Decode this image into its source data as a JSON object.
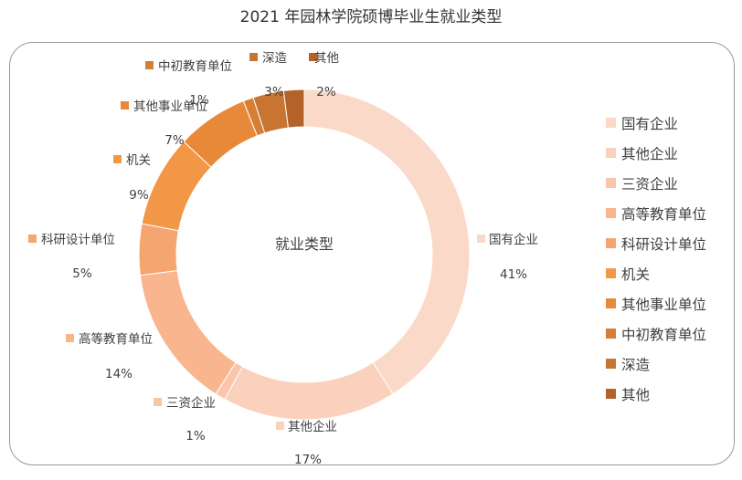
{
  "chart_data": {
    "type": "pie",
    "donut": true,
    "title": "2021 年园林学院硕博毕业生就业类型",
    "center_label": "就业类型",
    "legend_position": "right",
    "categories": [
      "国有企业",
      "其他企业",
      "三资企业",
      "高等教育单位",
      "科研设计单位",
      "机关",
      "其他事业单位",
      "中初教育单位",
      "深造",
      "其他"
    ],
    "values": [
      41,
      17,
      1,
      14,
      5,
      9,
      7,
      1,
      3,
      2
    ],
    "value_labels": [
      "41%",
      "17%",
      "1%",
      "14%",
      "5%",
      "9%",
      "7%",
      "1%",
      "3%",
      "2%"
    ],
    "colors": [
      "#FBD9C9",
      "#FAD1BC",
      "#F9C6AB",
      "#F8B58E",
      "#F5A56F",
      "#F19745",
      "#E8893A",
      "#D57E35",
      "#C77530",
      "#B4622A"
    ]
  }
}
